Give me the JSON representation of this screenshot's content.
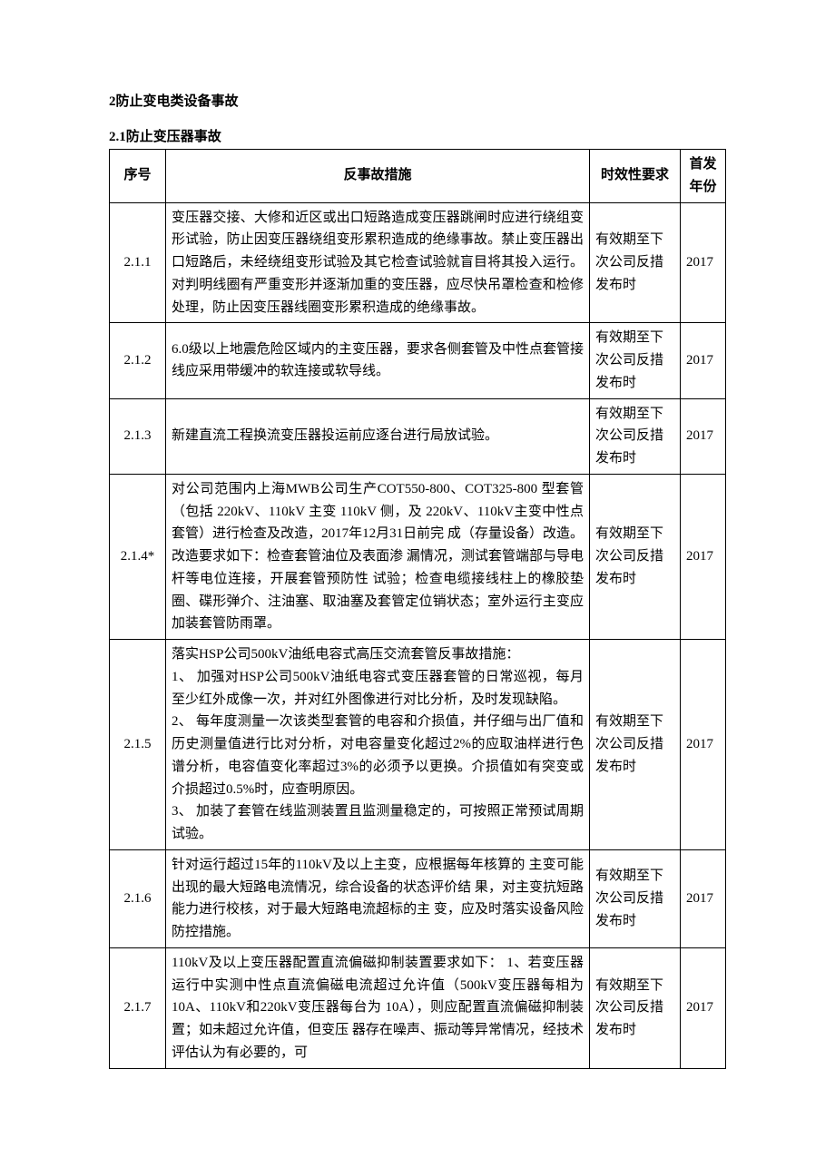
{
  "heading1": "2防止变电类设备事故",
  "heading2": "2.1防止变压器事故",
  "headers": {
    "num": "序号",
    "measure": "反事故措施",
    "validity": "时效性要求",
    "year": "首发年份"
  },
  "rows": [
    {
      "num": "2.1.1",
      "measure": "变压器交接、大修和近区或出口短路造成变压器跳闸时应进行绕组变形试验，防止因变压器绕组变形累积造成的绝缘事故。禁止变压器出口短路后，未经绕组变形试验及其它检查试验就盲目将其投入运行。对判明线圈有严重变形并逐渐加重的变压器，应尽快吊罩检查和检修处理，防止因变压器线圈变形累积造成的绝缘事故。",
      "validity": "有效期至下次公司反措发布时",
      "year": "2017"
    },
    {
      "num": "2.1.2",
      "measure": "6.0级以上地震危险区域内的主变压器，要求各侧套管及中性点套管接线应采用带缓冲的软连接或软导线。",
      "validity": "有效期至下次公司反措发布时",
      "year": "2017"
    },
    {
      "num": "2.1.3",
      "measure": "新建直流工程换流变压器投运前应逐台进行局放试验。",
      "validity": "有效期至下次公司反措发布时",
      "year": "2017"
    },
    {
      "num": "2.1.4*",
      "measure": "对公司范围内上海MWB公司生产COT550-800、COT325-800 型套管（包括 220kV、110kV 主变 110kV 侧，及 220kV、110kV主变中性点套管）进行检查及改造，2017年12月31日前完 成（存量设备）改造。改造要求如下：检查套管油位及表面渗 漏情况，测试套管端部与导电杆等电位连接，开展套管预防性 试验；检查电缆接线柱上的橡胶垫圈、碟形弹介、注油塞、取油塞及套管定位销状态；室外运行主变应加装套管防雨罩。",
      "validity": "有效期至下次公司反措发布时",
      "year": "2017"
    },
    {
      "num": "2.1.5",
      "measure": "落实HSP公司500kV油纸电容式高压交流套管反事故措施：\n1、 加强对HSP公司500kV油纸电容式变压器套管的日常巡视，每月至少红外成像一次，并对红外图像进行对比分析，及时发现缺陷。\n2、 每年度测量一次该类型套管的电容和介损值，并仔细与出厂值和历史测量值进行比对分析，对电容量变化超过2%的应取油样进行色谱分析，电容值变化率超过3%的必须予以更换。介损值如有突变或介损超过0.5%时，应查明原因。\n3、 加装了套管在线监测装置且监测量稳定的，可按照正常预试周期试验。",
      "validity": "有效期至下次公司反措发布时",
      "year": "2017"
    },
    {
      "num": "2.1.6",
      "measure": "针对运行超过15年的110kV及以上主变，应根据每年核算的 主变可能出现的最大短路电流情况，综合设备的状态评价结 果，对主变抗短路能力进行校核，对于最大短路电流超标的主 变，应及时落实设备风险防控措施。",
      "validity": "有效期至下次公司反措发布时",
      "year": "2017"
    },
    {
      "num": "2.1.7",
      "measure": "110kV及以上变压器配置直流偏磁抑制装置要求如下： 1、若变压器运行中实测中性点直流偏磁电流超过允许值（500kV变压器每相为10A、110kV和220kV变压器每台为 10A），则应配置直流偏磁抑制装置；如未超过允许值，但变压 器存在噪声、振动等异常情况，经技术评估认为有必要的，可",
      "validity": "有效期至下次公司反措发布时",
      "year": "2017"
    }
  ]
}
